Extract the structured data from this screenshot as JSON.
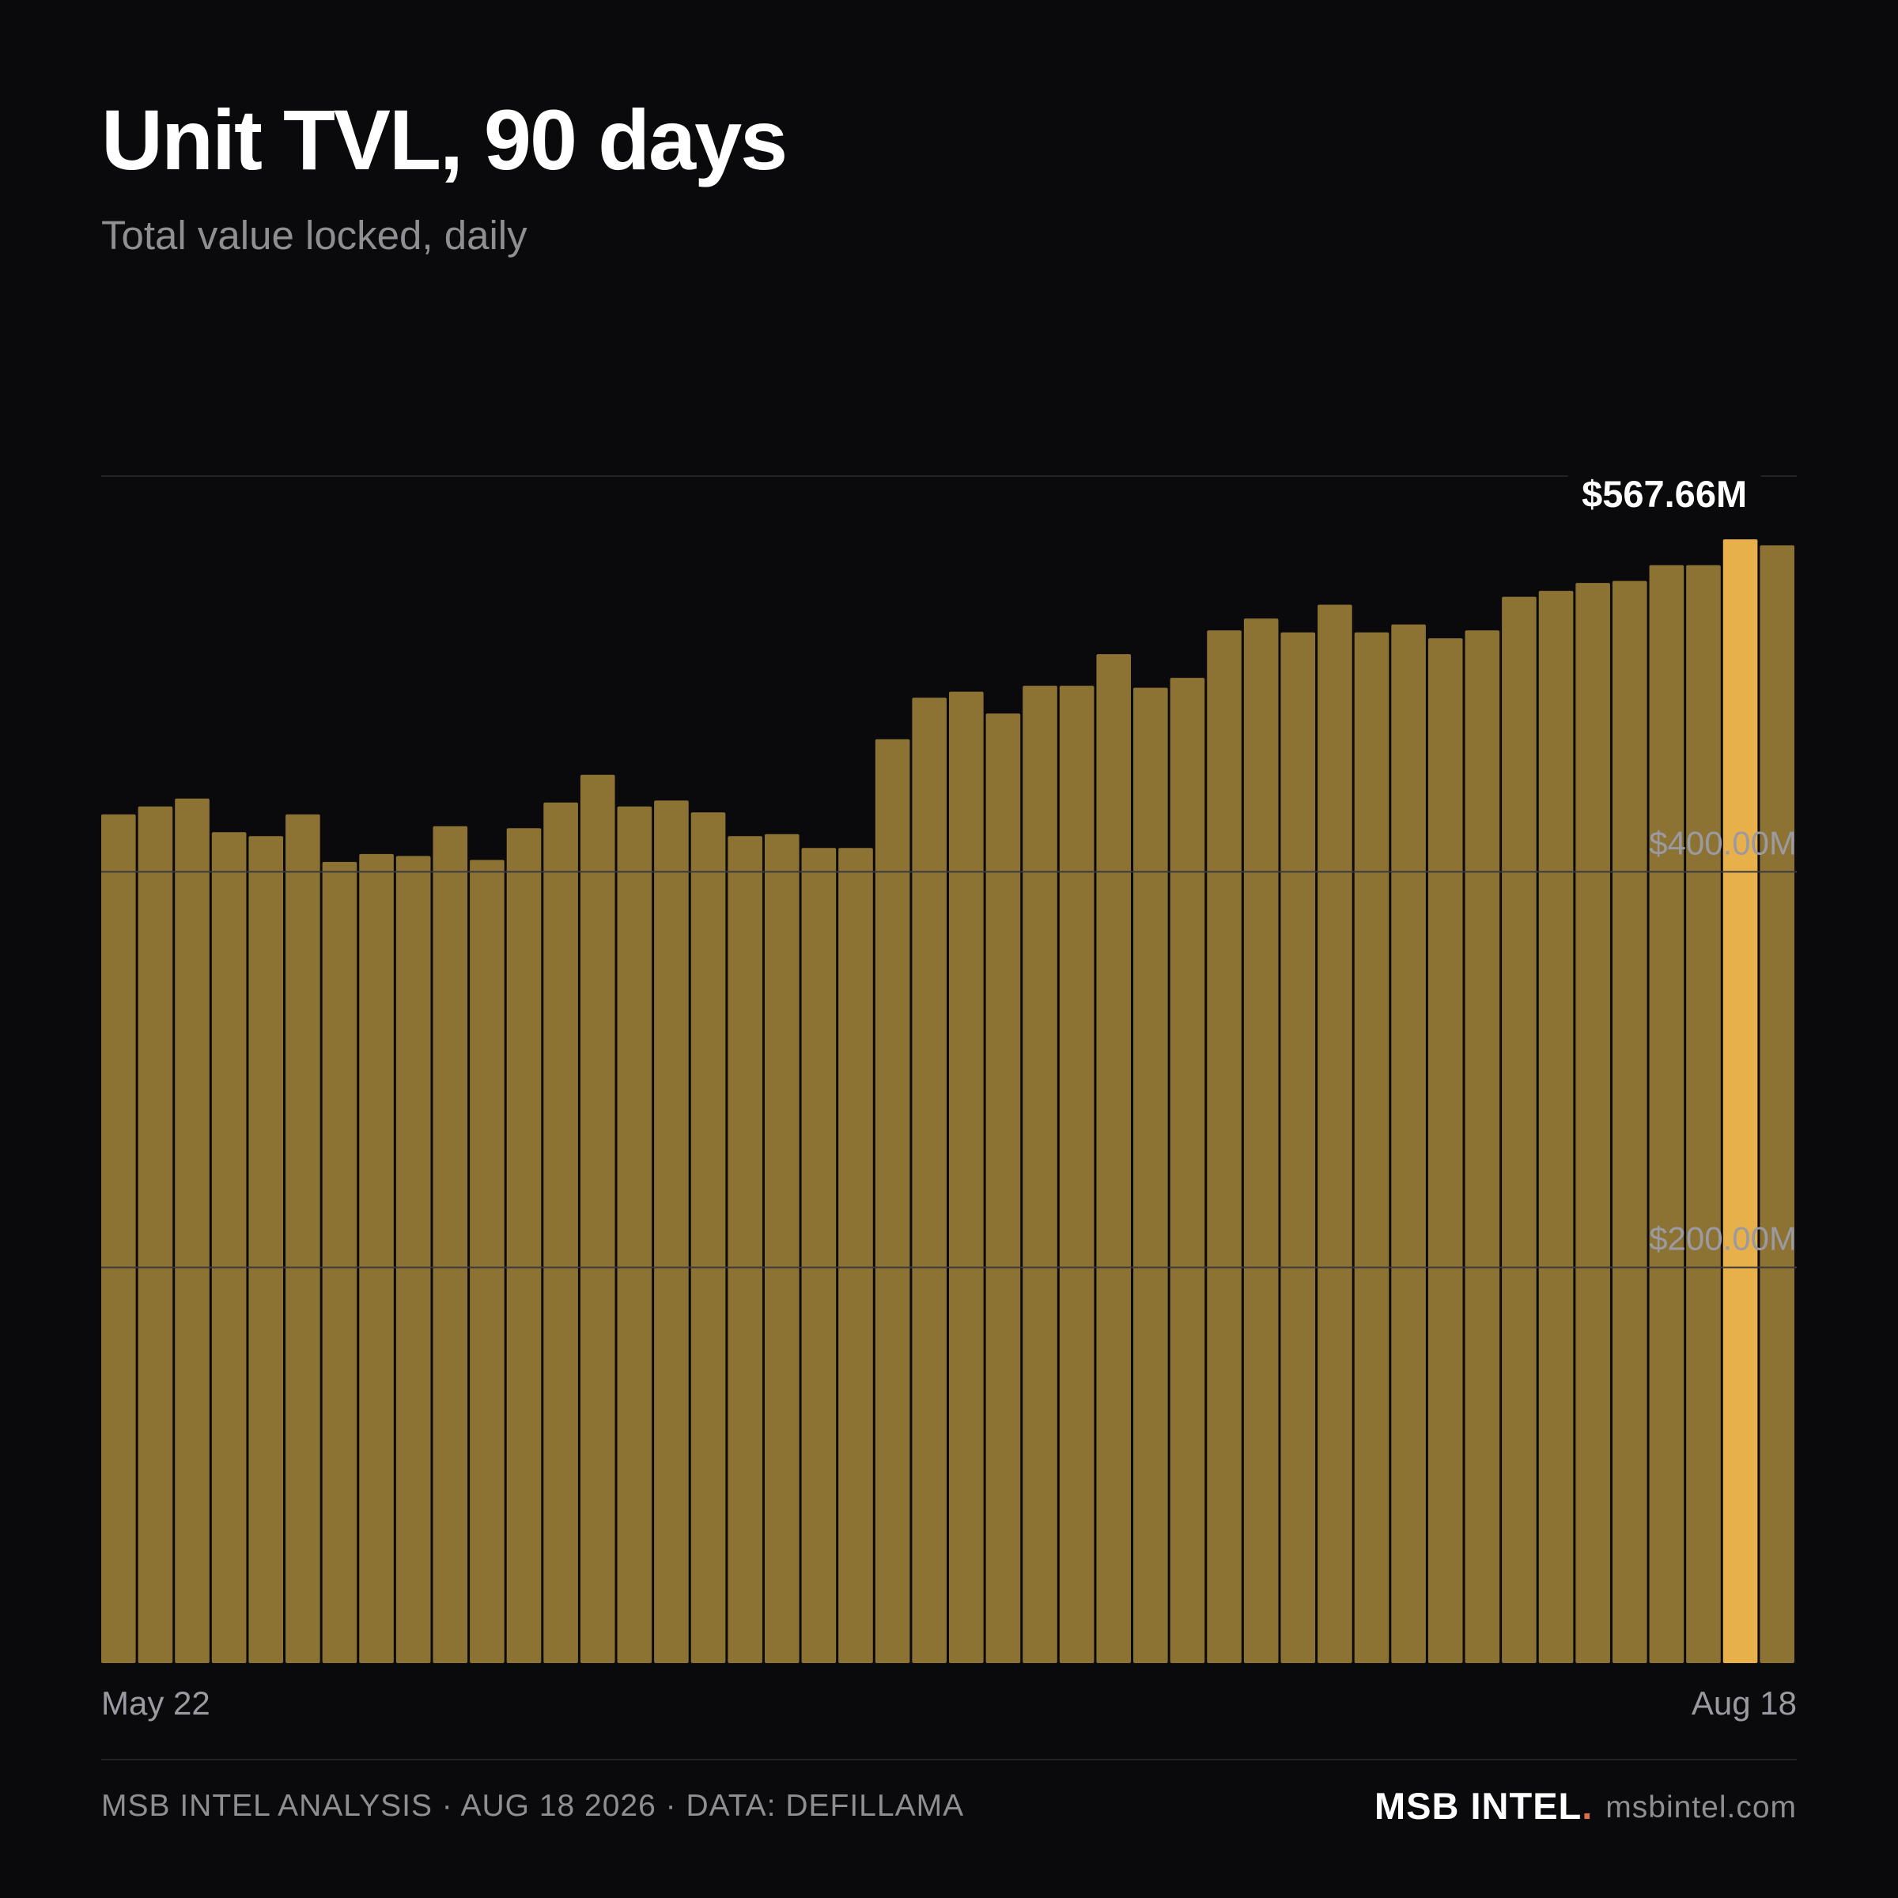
{
  "title": "Unit TVL, 90 days",
  "subtitle": "Total value locked, daily",
  "footer": {
    "source": "MSB INTEL ANALYSIS · AUG 18 2026 · DATA: DEFILLAMA",
    "brand": "MSB INTEL",
    "brand_dot": ".",
    "site": "msbintel.com"
  },
  "colors": {
    "background": "#0a0a0c",
    "bar": "#8c7334",
    "highlight": "#e8b04b",
    "grid": "#3a3a3e",
    "text_muted": "#8e8e93"
  },
  "chart_data": {
    "type": "bar",
    "x_range": [
      "May 22",
      "Aug 18"
    ],
    "x_tick_labels": [
      "May 22",
      "Aug 18"
    ],
    "y_tick_labels": [
      "$400.00M",
      "$200.00M"
    ],
    "y_ticks": [
      200,
      400,
      600
    ],
    "ylim": [
      0,
      600
    ],
    "unit": "$M",
    "highlight_index": 44,
    "highlight_label": "$567.66M",
    "values": [
      429,
      433,
      437,
      420,
      418,
      429,
      405,
      409,
      408,
      423,
      406,
      422,
      435,
      449,
      433,
      436,
      430,
      418,
      419,
      412,
      412,
      467,
      488,
      491,
      480,
      494,
      494,
      510,
      493,
      498,
      522,
      528,
      521,
      535,
      521,
      525,
      518,
      522,
      539,
      542,
      546,
      547,
      555,
      555,
      568,
      565
    ]
  }
}
